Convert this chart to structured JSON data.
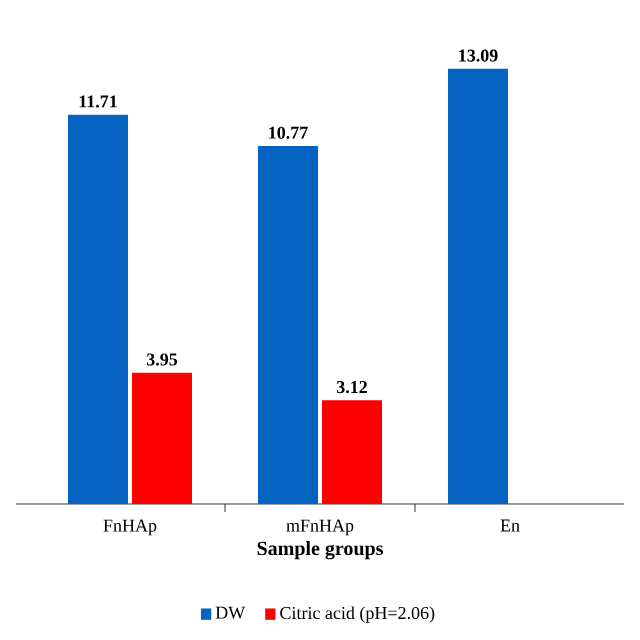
{
  "chart_data": {
    "type": "bar",
    "xlabel": "Sample groups",
    "categories": [
      "FnHAp",
      "mFnHAp",
      "En"
    ],
    "series": [
      {
        "name": "DW",
        "color": "#0563c1",
        "values": [
          11.71,
          10.77,
          13.09
        ]
      },
      {
        "name": "Citric acid (pH=2.06)",
        "color": "#ff0000",
        "values": [
          3.95,
          3.12,
          null
        ]
      }
    ],
    "data_labels": true,
    "legend": "bottom"
  }
}
